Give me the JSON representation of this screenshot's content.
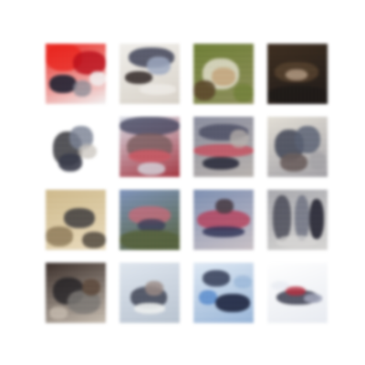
{
  "grid": {
    "rows": 4,
    "cols": 4,
    "tiles": [
      {
        "id": 1,
        "palette": [
          "#e2261f",
          "#b3121d",
          "#f2f2f2",
          "#222231",
          "#8a8b95"
        ]
      },
      {
        "id": 2,
        "palette": [
          "#f0eeea",
          "#2a2d44",
          "#9ea9bf",
          "#3b3330",
          "#d8d2c9"
        ]
      },
      {
        "id": 3,
        "palette": [
          "#6f7f3a",
          "#efeade",
          "#c0a37d",
          "#5b4a2e",
          "#8e8f5f"
        ]
      },
      {
        "id": 4,
        "palette": [
          "#3e2f22",
          "#5a4532",
          "#b09983",
          "#1f1a18",
          "#7a644d"
        ]
      },
      {
        "id": 5,
        "palette": [
          "#ffffff",
          "#1c1c22",
          "#7c8394",
          "#c9c4bd",
          "#3a3c4a"
        ]
      },
      {
        "id": 6,
        "palette": [
          "#a03a44",
          "#d8dde6",
          "#3c3f58",
          "#7a5d5f",
          "#c55b66"
        ]
      },
      {
        "id": 7,
        "palette": [
          "#8b8e9e",
          "#c44a58",
          "#4a4d62",
          "#b8b2ae",
          "#2d2e3c"
        ]
      },
      {
        "id": 8,
        "palette": [
          "#e3dfd6",
          "#5a6172",
          "#2f3446",
          "#a3a1a6",
          "#6b5f5d"
        ]
      },
      {
        "id": 9,
        "palette": [
          "#cdb98d",
          "#e9dcc0",
          "#2b2b30",
          "#8d7a5a",
          "#5b5247"
        ]
      },
      {
        "id": 10,
        "palette": [
          "#7f93b8",
          "#c76b78",
          "#3c4058",
          "#a88b8a",
          "#56623f"
        ]
      },
      {
        "id": 11,
        "palette": [
          "#7e8fb0",
          "#2f3354",
          "#b33a54",
          "#c9c1c6",
          "#4b3f47"
        ]
      },
      {
        "id": 12,
        "palette": [
          "#a8a8ad",
          "#3c3e4b",
          "#6e717f",
          "#d7d6d4",
          "#262733"
        ]
      },
      {
        "id": 13,
        "palette": [
          "#3b2f2a",
          "#7b7774",
          "#c8beb3",
          "#1d1c20",
          "#5d4c40"
        ]
      },
      {
        "id": 14,
        "palette": [
          "#dfe6ee",
          "#b8c3cf",
          "#2e3242",
          "#9a8a86",
          "#ecefef"
        ]
      },
      {
        "id": 15,
        "palette": [
          "#5c8cc9",
          "#dfe9f3",
          "#1f2740",
          "#9ab5d6",
          "#ffffff"
        ]
      },
      {
        "id": 16,
        "palette": [
          "#ffffff",
          "#e8ebf1",
          "#232638",
          "#b03040",
          "#9ea3b5"
        ]
      }
    ]
  }
}
